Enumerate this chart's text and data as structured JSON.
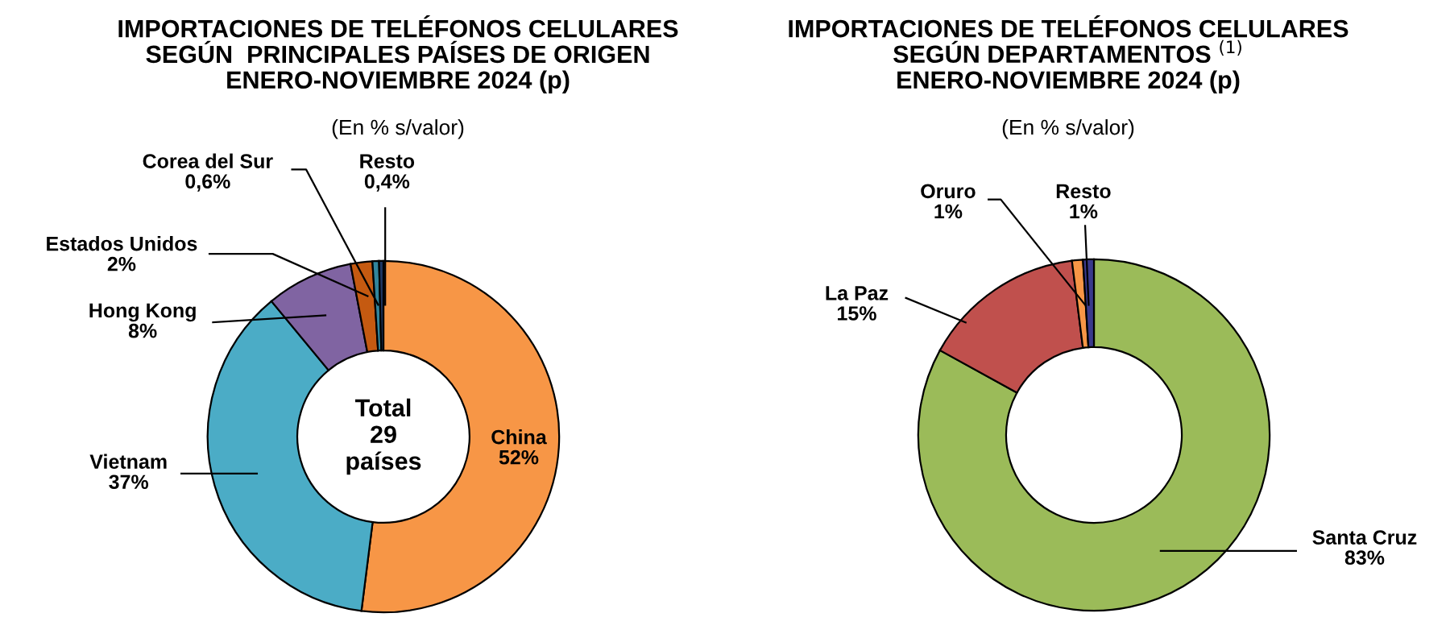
{
  "chart_data": [
    {
      "type": "donut",
      "title": "IMPORTACIONES DE TELÉFONOS CELULARES\nSEGÚN  PRINCIPALES PAÍSES DE ORIGEN\nENERO-NOVIEMBRE 2024 (p)",
      "subtitle": "(En % s/valor)",
      "categories": [
        "China",
        "Vietnam",
        "Hong Kong",
        "Estados Unidos",
        "Corea del Sur",
        "Resto"
      ],
      "values": [
        52,
        37,
        8,
        2,
        0.6,
        0.4
      ],
      "colors": [
        "#f79646",
        "#4bacc6",
        "#8064a2",
        "#c55a11",
        "#31859c",
        "#1f3864"
      ],
      "value_labels": [
        "52%",
        "37%",
        "8%",
        "2%",
        "0,6%",
        "0,4%"
      ],
      "annotations": [
        "Total\n29\npaíses"
      ]
    },
    {
      "type": "donut",
      "title": "IMPORTACIONES DE TELÉFONOS CELULARES\nSEGÚN DEPARTAMENTOS $^{(1)}$\nENERO-NOVIEMBRE 2024 (p)",
      "subtitle": "(En % s/valor)",
      "categories": [
        "Santa Cruz",
        "La Paz",
        "Oruro",
        "Resto"
      ],
      "values": [
        83,
        15,
        1,
        1
      ],
      "colors": [
        "#9bbb59",
        "#c0504d",
        "#f79646",
        "#3a3a8c"
      ],
      "value_labels": [
        "83%",
        "15%",
        "1%",
        "1%"
      ]
    }
  ]
}
